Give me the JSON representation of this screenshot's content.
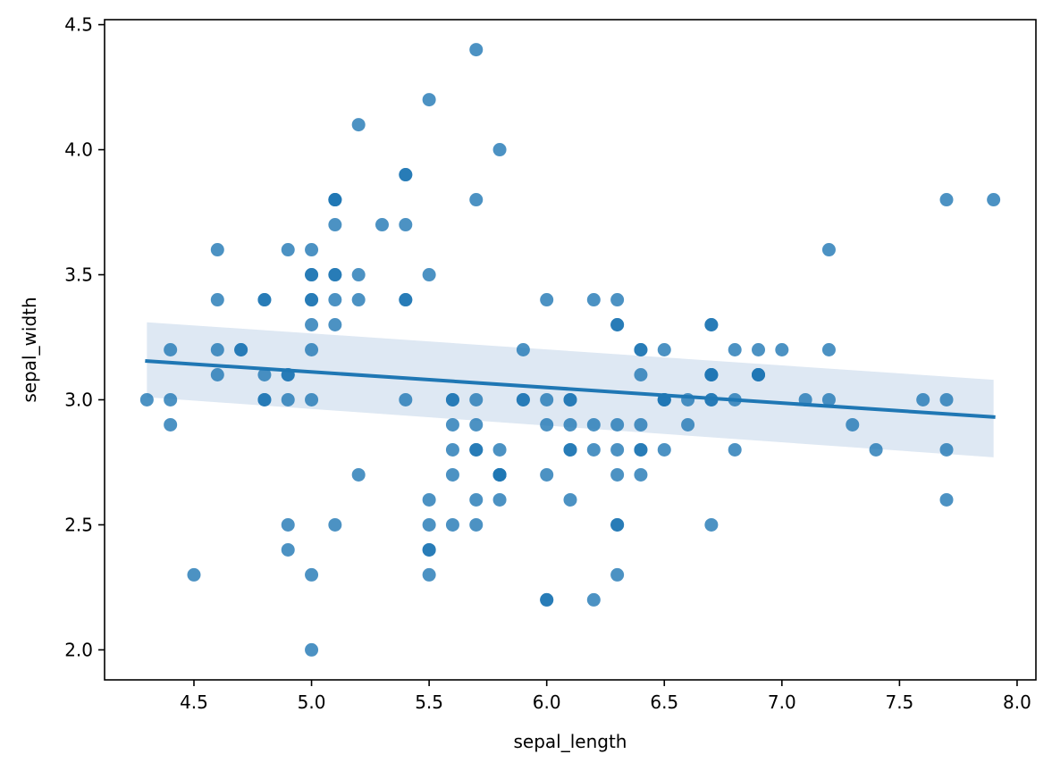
{
  "chart_data": {
    "type": "scatter",
    "title": "",
    "xlabel": "sepal_length",
    "ylabel": "sepal_width",
    "xlim": [
      4.12,
      8.08
    ],
    "ylim": [
      1.88,
      4.52
    ],
    "xticks": [
      4.5,
      5.0,
      5.5,
      6.0,
      6.5,
      7.0,
      7.5,
      8.0
    ],
    "xtick_labels": [
      "4.5",
      "5.0",
      "5.5",
      "6.0",
      "6.5",
      "7.0",
      "7.5",
      "8.0"
    ],
    "yticks": [
      2.0,
      2.5,
      3.0,
      3.5,
      4.0,
      4.5
    ],
    "ytick_labels": [
      "2.0",
      "2.5",
      "3.0",
      "3.5",
      "4.0",
      "4.5"
    ],
    "grid": false,
    "point_color": "#1f77b4",
    "points": [
      [
        5.1,
        3.5
      ],
      [
        4.9,
        3.0
      ],
      [
        4.7,
        3.2
      ],
      [
        4.6,
        3.1
      ],
      [
        5.0,
        3.6
      ],
      [
        5.4,
        3.9
      ],
      [
        4.6,
        3.4
      ],
      [
        5.0,
        3.4
      ],
      [
        4.4,
        2.9
      ],
      [
        4.9,
        3.1
      ],
      [
        5.4,
        3.7
      ],
      [
        4.8,
        3.4
      ],
      [
        4.8,
        3.0
      ],
      [
        4.3,
        3.0
      ],
      [
        5.8,
        4.0
      ],
      [
        5.7,
        4.4
      ],
      [
        5.4,
        3.9
      ],
      [
        5.1,
        3.5
      ],
      [
        5.7,
        3.8
      ],
      [
        5.1,
        3.8
      ],
      [
        5.4,
        3.4
      ],
      [
        5.1,
        3.7
      ],
      [
        4.6,
        3.6
      ],
      [
        5.1,
        3.3
      ],
      [
        4.8,
        3.4
      ],
      [
        5.0,
        3.0
      ],
      [
        5.0,
        3.4
      ],
      [
        5.2,
        3.5
      ],
      [
        5.2,
        3.4
      ],
      [
        4.7,
        3.2
      ],
      [
        4.8,
        3.1
      ],
      [
        5.4,
        3.4
      ],
      [
        5.2,
        4.1
      ],
      [
        5.5,
        4.2
      ],
      [
        4.9,
        3.1
      ],
      [
        5.0,
        3.2
      ],
      [
        5.5,
        3.5
      ],
      [
        4.9,
        3.6
      ],
      [
        4.4,
        3.0
      ],
      [
        5.1,
        3.4
      ],
      [
        5.0,
        3.5
      ],
      [
        4.5,
        2.3
      ],
      [
        4.4,
        3.2
      ],
      [
        5.0,
        3.5
      ],
      [
        5.1,
        3.8
      ],
      [
        4.8,
        3.0
      ],
      [
        5.1,
        3.8
      ],
      [
        4.6,
        3.2
      ],
      [
        5.3,
        3.7
      ],
      [
        5.0,
        3.3
      ],
      [
        7.0,
        3.2
      ],
      [
        6.4,
        3.2
      ],
      [
        6.9,
        3.1
      ],
      [
        5.5,
        2.3
      ],
      [
        6.5,
        2.8
      ],
      [
        5.7,
        2.8
      ],
      [
        6.3,
        3.3
      ],
      [
        4.9,
        2.4
      ],
      [
        6.6,
        2.9
      ],
      [
        5.2,
        2.7
      ],
      [
        5.0,
        2.0
      ],
      [
        5.9,
        3.0
      ],
      [
        6.0,
        2.2
      ],
      [
        6.1,
        2.9
      ],
      [
        5.6,
        2.9
      ],
      [
        6.7,
        3.1
      ],
      [
        5.6,
        3.0
      ],
      [
        5.8,
        2.7
      ],
      [
        6.2,
        2.2
      ],
      [
        5.6,
        2.5
      ],
      [
        5.9,
        3.2
      ],
      [
        6.1,
        2.8
      ],
      [
        6.3,
        2.5
      ],
      [
        6.1,
        2.8
      ],
      [
        6.4,
        2.9
      ],
      [
        6.6,
        3.0
      ],
      [
        6.8,
        2.8
      ],
      [
        6.7,
        3.0
      ],
      [
        6.0,
        2.9
      ],
      [
        5.7,
        2.6
      ],
      [
        5.5,
        2.4
      ],
      [
        5.5,
        2.4
      ],
      [
        5.8,
        2.7
      ],
      [
        6.0,
        2.7
      ],
      [
        5.4,
        3.0
      ],
      [
        6.0,
        3.4
      ],
      [
        6.7,
        3.1
      ],
      [
        6.3,
        2.3
      ],
      [
        5.6,
        3.0
      ],
      [
        5.5,
        2.5
      ],
      [
        5.5,
        2.6
      ],
      [
        6.1,
        3.0
      ],
      [
        5.8,
        2.6
      ],
      [
        5.0,
        2.3
      ],
      [
        5.6,
        2.7
      ],
      [
        5.7,
        3.0
      ],
      [
        5.7,
        2.9
      ],
      [
        6.2,
        2.9
      ],
      [
        5.1,
        2.5
      ],
      [
        5.7,
        2.8
      ],
      [
        6.3,
        3.3
      ],
      [
        5.8,
        2.7
      ],
      [
        7.1,
        3.0
      ],
      [
        6.3,
        2.9
      ],
      [
        6.5,
        3.0
      ],
      [
        7.6,
        3.0
      ],
      [
        4.9,
        2.5
      ],
      [
        7.3,
        2.9
      ],
      [
        6.7,
        2.5
      ],
      [
        7.2,
        3.6
      ],
      [
        6.5,
        3.2
      ],
      [
        6.4,
        2.7
      ],
      [
        6.8,
        3.0
      ],
      [
        5.7,
        2.5
      ],
      [
        5.8,
        2.8
      ],
      [
        6.4,
        3.2
      ],
      [
        6.5,
        3.0
      ],
      [
        7.7,
        3.8
      ],
      [
        7.7,
        2.6
      ],
      [
        6.0,
        2.2
      ],
      [
        6.9,
        3.2
      ],
      [
        5.6,
        2.8
      ],
      [
        7.7,
        2.8
      ],
      [
        6.3,
        2.7
      ],
      [
        6.7,
        3.3
      ],
      [
        7.2,
        3.2
      ],
      [
        6.2,
        2.8
      ],
      [
        6.1,
        3.0
      ],
      [
        6.4,
        2.8
      ],
      [
        7.2,
        3.0
      ],
      [
        7.4,
        2.8
      ],
      [
        7.9,
        3.8
      ],
      [
        6.4,
        2.8
      ],
      [
        6.3,
        2.8
      ],
      [
        6.1,
        2.6
      ],
      [
        7.7,
        3.0
      ],
      [
        6.3,
        3.4
      ],
      [
        6.4,
        3.1
      ],
      [
        6.0,
        3.0
      ],
      [
        6.9,
        3.1
      ],
      [
        6.7,
        3.1
      ],
      [
        6.9,
        3.1
      ],
      [
        5.8,
        2.7
      ],
      [
        6.8,
        3.2
      ],
      [
        6.7,
        3.3
      ],
      [
        6.7,
        3.0
      ],
      [
        6.3,
        2.5
      ],
      [
        6.5,
        3.0
      ],
      [
        6.2,
        3.4
      ],
      [
        5.9,
        3.0
      ]
    ],
    "regression": {
      "x": [
        4.3,
        7.9
      ],
      "y": [
        3.155,
        2.931
      ],
      "ci_lower": [
        3.01,
        2.77
      ],
      "ci_upper": [
        3.31,
        3.08
      ],
      "color": "#1f77b4",
      "ci_color": "#dee8f3"
    }
  }
}
